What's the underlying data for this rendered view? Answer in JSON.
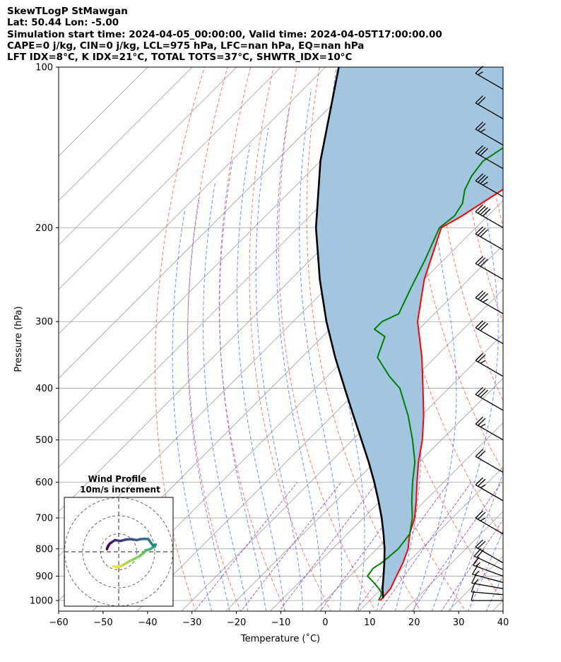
{
  "header": {
    "line1": "SkewTLogP StMawgan",
    "line2": "Lat: 50.44   Lon: -5.00",
    "line3": "Simulation start time: 2024-04-05_00:00:00, Valid time: 2024-04-05T17:00:00.00",
    "line4": "CAPE=0 j/kg, CIN=0 j/kg, LCL=975 hPa, LFC=nan hPa, EQ=nan hPa",
    "line5": "LFT IDX=8°C, K IDX=21°C, TOTAL TOTS=37°C, SHWTR_IDX=10°C"
  },
  "colors": {
    "temperature": "#ff0000",
    "dewpoint": "#008000",
    "parcel": "#000000",
    "cape_fill": "#a2c6df",
    "dry_adiabat": "#ff5555",
    "moist_adiabat": "#4466ff",
    "mixing_ratio": "#8833aa",
    "isotherm": "#a0a0a0"
  },
  "chart_data": {
    "type": "line",
    "title": "SkewTLogP StMawgan",
    "xlabel": "Temperature (˚C)",
    "ylabel": "Pressure (hPa)",
    "xlim": [
      -60,
      40
    ],
    "ylim": [
      1050,
      100
    ],
    "y_scale": "log",
    "x_ticks": [
      "−60",
      "−50",
      "−40",
      "−30",
      "−20",
      "−10",
      "0",
      "10",
      "20",
      "30",
      "40"
    ],
    "y_ticks": [
      "100",
      "200",
      "300",
      "400",
      "500",
      "600",
      "700",
      "800",
      "900",
      "1000"
    ],
    "grid": true,
    "series": [
      {
        "name": "temperature",
        "p": [
          1000,
          950,
          900,
          850,
          800,
          750,
          700,
          650,
          600,
          550,
          500,
          450,
          400,
          350,
          300,
          250,
          200,
          190,
          170,
          150,
          140,
          120,
          100
        ],
        "t": [
          12.4,
          12.0,
          10.5,
          9.0,
          7.0,
          4.0,
          1.5,
          -2.0,
          -6.0,
          -10.2,
          -14.3,
          -19.5,
          -25.8,
          -33.0,
          -42.0,
          -50.0,
          -57.8,
          -55.8,
          -52.6,
          -52.0,
          -50.8,
          -46.3,
          -44.5
        ]
      },
      {
        "name": "dewpoint",
        "p": [
          1000,
          970,
          950,
          920,
          900,
          870,
          850,
          800,
          750,
          700,
          650,
          600,
          550,
          500,
          450,
          400,
          380,
          350,
          320,
          310,
          300,
          290,
          260,
          230,
          200,
          190,
          180,
          170,
          160,
          150,
          140,
          120,
          100
        ],
        "t": [
          12.0,
          11.2,
          9.4,
          6.3,
          4.0,
          3.5,
          4.2,
          4.8,
          4.0,
          1.0,
          -3.0,
          -7.0,
          -11.0,
          -16.5,
          -23.0,
          -31.0,
          -36.0,
          -43.0,
          -46.0,
          -50.0,
          -50.0,
          -48.0,
          -51.0,
          -54.2,
          -58.2,
          -57.5,
          -58.5,
          -61.0,
          -62.6,
          -63.4,
          -61.5,
          -57.5,
          -50.0
        ]
      },
      {
        "name": "parcel",
        "p": [
          990,
          950,
          900,
          850,
          800,
          750,
          700,
          650,
          600,
          550,
          500,
          450,
          400,
          350,
          300,
          250,
          200,
          150,
          100
        ],
        "t": [
          12.5,
          10.2,
          7.6,
          4.8,
          1.7,
          -1.9,
          -5.9,
          -10.5,
          -15.6,
          -21.4,
          -28.0,
          -35.3,
          -43.4,
          -52.5,
          -62.5,
          -73.5,
          -86.0,
          -100.0,
          -117.0
        ]
      }
    ],
    "winds": [
      {
        "p": 1000,
        "speed_kt": 10,
        "dir_deg": 270
      },
      {
        "p": 975,
        "speed_kt": 12,
        "dir_deg": 275
      },
      {
        "p": 950,
        "speed_kt": 14,
        "dir_deg": 280
      },
      {
        "p": 925,
        "speed_kt": 15,
        "dir_deg": 285
      },
      {
        "p": 900,
        "speed_kt": 17,
        "dir_deg": 290
      },
      {
        "p": 875,
        "speed_kt": 19,
        "dir_deg": 295
      },
      {
        "p": 850,
        "speed_kt": 20,
        "dir_deg": 300
      },
      {
        "p": 750,
        "speed_kt": 25,
        "dir_deg": 300
      },
      {
        "p": 650,
        "speed_kt": 25,
        "dir_deg": 300
      },
      {
        "p": 575,
        "speed_kt": 20,
        "dir_deg": 300
      },
      {
        "p": 500,
        "speed_kt": 25,
        "dir_deg": 300
      },
      {
        "p": 440,
        "speed_kt": 30,
        "dir_deg": 300
      },
      {
        "p": 380,
        "speed_kt": 25,
        "dir_deg": 300
      },
      {
        "p": 330,
        "speed_kt": 30,
        "dir_deg": 300
      },
      {
        "p": 290,
        "speed_kt": 35,
        "dir_deg": 300
      },
      {
        "p": 250,
        "speed_kt": 30,
        "dir_deg": 300
      },
      {
        "p": 220,
        "speed_kt": 30,
        "dir_deg": 300
      },
      {
        "p": 200,
        "speed_kt": 40,
        "dir_deg": 300
      },
      {
        "p": 175,
        "speed_kt": 35,
        "dir_deg": 300
      },
      {
        "p": 155,
        "speed_kt": 30,
        "dir_deg": 300
      },
      {
        "p": 140,
        "speed_kt": 25,
        "dir_deg": 300
      },
      {
        "p": 125,
        "speed_kt": 20,
        "dir_deg": 300
      },
      {
        "p": 110,
        "speed_kt": 15,
        "dir_deg": 300
      }
    ],
    "inset": {
      "title": "Wind Profile",
      "subtitle": "10m/s increment",
      "u": [
        -3.0,
        -1.0,
        1.0,
        3.0,
        5.5,
        8.5,
        11.5,
        14.0,
        15.0,
        16.0,
        17.5,
        19.0,
        20.0,
        20.5,
        19.0,
        17.5,
        16.5,
        14.5,
        12.0,
        10.0,
        7.0,
        4.0,
        1.0,
        -2.0,
        -3.5,
        -5.0,
        -6.0,
        -6.5
      ],
      "v": [
        -8.0,
        -8.5,
        -8.0,
        -7.0,
        -5.5,
        -4.0,
        -2.5,
        -0.5,
        1.0,
        1.0,
        1.5,
        2.5,
        3.0,
        4.0,
        3.5,
        5.5,
        7.0,
        7.2,
        7.0,
        6.5,
        7.0,
        6.8,
        6.0,
        6.5,
        5.5,
        4.5,
        3.0,
        1.5
      ]
    }
  }
}
